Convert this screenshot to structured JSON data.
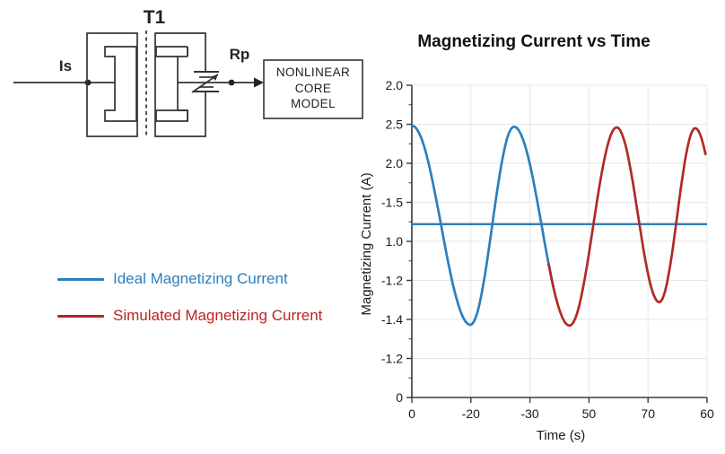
{
  "diagram": {
    "transformer_label": "T1",
    "input_label": "Is",
    "node_label": "Rp",
    "box_lines": [
      "NONLINEAR",
      "CORE",
      "MODEL"
    ]
  },
  "legend": {
    "items": [
      {
        "label": "Ideal Magnetizing Current",
        "color": "#2b7fbd"
      },
      {
        "label": "Simulated Magnetizing Current",
        "color": "#bb2423"
      }
    ]
  },
  "chart_data": {
    "type": "line",
    "title": "Magnetizing Current vs Time",
    "xlabel": "Time (s)",
    "ylabel": "Magnetizing Current (A)",
    "x_tick_labels": [
      "0",
      "-20",
      "-30",
      "50",
      "70",
      "60"
    ],
    "y_tick_labels_top_to_bottom": [
      "2.0",
      "2.5",
      "2.0",
      "-1.5",
      "1.0",
      "-1.2",
      "-1.4",
      "-1.2",
      "0"
    ],
    "grid": true,
    "legend_position": "outside-left",
    "axis_note": "coordinates below are in tick-index units: x from 0 (tick '0') to 5 (tick '60'), y from 0 (tick '0') to 8 (tick '2.0')",
    "wave_anchors_peaks_troughs": [
      [
        0,
        6.97
      ],
      [
        0.99,
        1.86
      ],
      [
        1.73,
        6.94
      ],
      [
        2.67,
        1.84
      ],
      [
        3.47,
        6.92
      ],
      [
        4.19,
        2.44
      ],
      [
        4.8,
        6.9
      ],
      [
        5.49,
        2.37
      ]
    ],
    "series": [
      {
        "name": "Ideal Magnetizing Current (constant)",
        "type": "hline",
        "color": "#2b7fbd",
        "y": 4.44,
        "x_range": [
          0,
          5
        ]
      },
      {
        "name": "Ideal Magnetizing Current (wave segment)",
        "type": "wave",
        "color": "#2b7fbd",
        "x_range": [
          0,
          2.4
        ]
      },
      {
        "name": "Simulated Magnetizing Current",
        "type": "wave",
        "color": "#b02a26",
        "x_range": [
          2.28,
          5.0
        ]
      }
    ],
    "colors": {
      "grid": "#e7e7e7",
      "axis": "#3a3a3a",
      "tick_text": "#1a1a1a"
    }
  }
}
